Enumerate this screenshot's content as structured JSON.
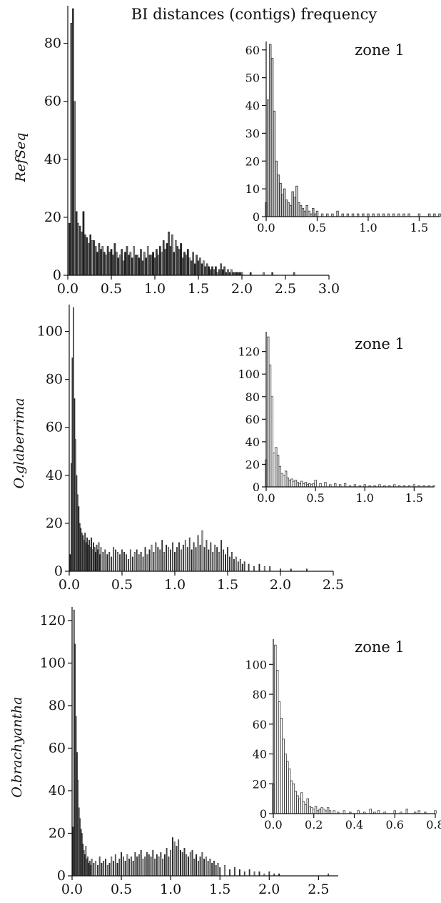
{
  "figure_title": "BI distances (contigs) frequency",
  "chart_data": [
    {
      "type": "bar",
      "panel": "main",
      "ylabel": "RefSeq",
      "xlim": [
        0,
        3.0
      ],
      "ylim": [
        0,
        92
      ],
      "x_ticks": [
        "0.0",
        "0.5",
        "1.0",
        "1.5",
        "2.0",
        "2.5",
        "3.0"
      ],
      "y_ticks": [
        "0",
        "20",
        "40",
        "60",
        "80"
      ],
      "x": [
        0.02,
        0.04,
        0.06,
        0.08,
        0.1,
        0.12,
        0.14,
        0.16,
        0.18,
        0.2,
        0.22,
        0.24,
        0.26,
        0.28,
        0.3,
        0.32,
        0.34,
        0.36,
        0.38,
        0.4,
        0.42,
        0.44,
        0.46,
        0.48,
        0.5,
        0.52,
        0.54,
        0.56,
        0.58,
        0.6,
        0.62,
        0.64,
        0.66,
        0.68,
        0.7,
        0.72,
        0.74,
        0.76,
        0.78,
        0.8,
        0.82,
        0.84,
        0.86,
        0.88,
        0.9,
        0.92,
        0.94,
        0.96,
        0.98,
        1.0,
        1.02,
        1.04,
        1.06,
        1.08,
        1.1,
        1.12,
        1.14,
        1.16,
        1.18,
        1.2,
        1.22,
        1.24,
        1.26,
        1.28,
        1.3,
        1.32,
        1.34,
        1.36,
        1.38,
        1.4,
        1.42,
        1.44,
        1.46,
        1.48,
        1.5,
        1.52,
        1.54,
        1.56,
        1.58,
        1.6,
        1.62,
        1.64,
        1.66,
        1.68,
        1.7,
        1.72,
        1.74,
        1.76,
        1.78,
        1.8,
        1.82,
        1.84,
        1.86,
        1.88,
        1.9,
        1.92,
        1.94,
        1.96,
        1.98,
        2.0,
        2.1,
        2.25,
        2.35,
        2.6
      ],
      "values": [
        18,
        87,
        92,
        60,
        22,
        18,
        17,
        15,
        22,
        14,
        13,
        11,
        14,
        12,
        12,
        10,
        8,
        11,
        9,
        10,
        8,
        7,
        10,
        8,
        9,
        7,
        11,
        8,
        6,
        7,
        9,
        5,
        8,
        10,
        7,
        8,
        6,
        10,
        7,
        7,
        6,
        9,
        5,
        8,
        6,
        10,
        7,
        7,
        8,
        6,
        9,
        7,
        10,
        8,
        12,
        9,
        11,
        15,
        10,
        14,
        8,
        12,
        10,
        9,
        11,
        6,
        8,
        7,
        9,
        6,
        5,
        8,
        4,
        7,
        5,
        6,
        4,
        5,
        3,
        4,
        3,
        2,
        3,
        2,
        3,
        1,
        2,
        4,
        2,
        3,
        1,
        2,
        1,
        2,
        1,
        1,
        1,
        1,
        1,
        1,
        1,
        1,
        1,
        1
      ],
      "style": "dark"
    },
    {
      "type": "bar",
      "panel": "inset",
      "label": "zone 1",
      "xlim": [
        0,
        1.7
      ],
      "ylim": [
        0,
        62
      ],
      "x_ticks": [
        "0.0",
        "0.5",
        "1.0",
        "1.5"
      ],
      "y_ticks": [
        "0",
        "10",
        "20",
        "30",
        "40",
        "50",
        "60"
      ],
      "x": [
        0.0,
        0.02,
        0.04,
        0.06,
        0.08,
        0.1,
        0.12,
        0.14,
        0.16,
        0.18,
        0.2,
        0.22,
        0.24,
        0.26,
        0.28,
        0.3,
        0.32,
        0.34,
        0.36,
        0.38,
        0.4,
        0.42,
        0.44,
        0.46,
        0.48,
        0.5,
        0.55,
        0.6,
        0.65,
        0.7,
        0.75,
        0.8,
        0.85,
        0.9,
        0.95,
        1.0,
        1.05,
        1.1,
        1.15,
        1.2,
        1.25,
        1.3,
        1.35,
        1.4,
        1.5,
        1.6,
        1.65,
        1.7
      ],
      "values": [
        5,
        42,
        62,
        57,
        38,
        20,
        15,
        12,
        8,
        10,
        6,
        5,
        4,
        9,
        7,
        11,
        5,
        4,
        3,
        2,
        4,
        2,
        1,
        3,
        1,
        2,
        1,
        1,
        1,
        2,
        1,
        1,
        1,
        1,
        1,
        1,
        1,
        1,
        1,
        1,
        1,
        1,
        1,
        1,
        1,
        1,
        1,
        1
      ],
      "style": "light-gray"
    },
    {
      "type": "bar",
      "panel": "main",
      "ylabel": "O.glaberrima",
      "xlim": [
        0,
        2.5
      ],
      "ylim": [
        0,
        110
      ],
      "x_ticks": [
        "0.0",
        "0.5",
        "1.0",
        "1.5",
        "2.0",
        "2.5"
      ],
      "y_ticks": [
        "0",
        "20",
        "40",
        "60",
        "80",
        "100"
      ],
      "x": [
        0.01,
        0.02,
        0.03,
        0.04,
        0.05,
        0.06,
        0.07,
        0.08,
        0.09,
        0.1,
        0.11,
        0.12,
        0.13,
        0.14,
        0.15,
        0.16,
        0.17,
        0.18,
        0.19,
        0.2,
        0.21,
        0.22,
        0.23,
        0.24,
        0.25,
        0.26,
        0.27,
        0.28,
        0.29,
        0.3,
        0.32,
        0.34,
        0.36,
        0.38,
        0.4,
        0.42,
        0.44,
        0.46,
        0.48,
        0.5,
        0.52,
        0.54,
        0.56,
        0.58,
        0.6,
        0.62,
        0.64,
        0.66,
        0.68,
        0.7,
        0.72,
        0.74,
        0.76,
        0.78,
        0.8,
        0.82,
        0.84,
        0.86,
        0.88,
        0.9,
        0.92,
        0.94,
        0.96,
        0.98,
        1.0,
        1.02,
        1.04,
        1.06,
        1.08,
        1.1,
        1.12,
        1.14,
        1.16,
        1.18,
        1.2,
        1.22,
        1.24,
        1.26,
        1.28,
        1.3,
        1.32,
        1.34,
        1.36,
        1.38,
        1.4,
        1.42,
        1.44,
        1.46,
        1.48,
        1.5,
        1.52,
        1.54,
        1.56,
        1.58,
        1.6,
        1.62,
        1.64,
        1.66,
        1.7,
        1.75,
        1.8,
        1.85,
        1.9,
        2.0,
        2.1,
        2.25
      ],
      "values": [
        7,
        45,
        89,
        110,
        72,
        55,
        40,
        32,
        27,
        20,
        18,
        16,
        15,
        13,
        16,
        12,
        14,
        11,
        13,
        10,
        14,
        9,
        12,
        10,
        8,
        11,
        9,
        12,
        7,
        10,
        8,
        9,
        7,
        8,
        6,
        10,
        9,
        8,
        7,
        9,
        8,
        7,
        5,
        9,
        6,
        8,
        9,
        7,
        8,
        6,
        10,
        7,
        9,
        11,
        8,
        12,
        10,
        9,
        13,
        8,
        11,
        10,
        9,
        12,
        8,
        10,
        12,
        9,
        11,
        13,
        10,
        14,
        9,
        12,
        10,
        15,
        11,
        17,
        10,
        13,
        9,
        12,
        8,
        11,
        10,
        8,
        13,
        9,
        7,
        10,
        6,
        8,
        5,
        6,
        4,
        5,
        3,
        4,
        3,
        2,
        3,
        2,
        2,
        1,
        1,
        1
      ],
      "style": "dark"
    },
    {
      "type": "bar",
      "panel": "inset",
      "label": "zone 1",
      "xlim": [
        0,
        1.7
      ],
      "ylim": [
        0,
        135
      ],
      "x_ticks": [
        "0.0",
        "0.5",
        "1.0",
        "1.5"
      ],
      "y_ticks": [
        "0",
        "20",
        "40",
        "60",
        "80",
        "100",
        "120"
      ],
      "x": [
        0.0,
        0.02,
        0.04,
        0.06,
        0.08,
        0.1,
        0.12,
        0.14,
        0.16,
        0.18,
        0.2,
        0.22,
        0.24,
        0.26,
        0.28,
        0.3,
        0.32,
        0.34,
        0.36,
        0.38,
        0.4,
        0.42,
        0.44,
        0.46,
        0.48,
        0.5,
        0.55,
        0.6,
        0.65,
        0.7,
        0.75,
        0.8,
        0.85,
        0.9,
        0.95,
        1.0,
        1.05,
        1.1,
        1.15,
        1.2,
        1.25,
        1.3,
        1.35,
        1.4,
        1.45,
        1.5,
        1.55,
        1.6,
        1.65,
        1.7
      ],
      "values": [
        24,
        133,
        108,
        80,
        30,
        35,
        28,
        18,
        12,
        10,
        14,
        8,
        6,
        7,
        5,
        6,
        4,
        3,
        5,
        3,
        4,
        2,
        3,
        2,
        3,
        6,
        3,
        4,
        2,
        3,
        2,
        3,
        1,
        2,
        1,
        2,
        1,
        1,
        2,
        1,
        1,
        2,
        1,
        1,
        1,
        2,
        1,
        1,
        1,
        1
      ],
      "style": "white"
    },
    {
      "type": "bar",
      "panel": "main",
      "ylabel": "O.brachyantha",
      "xlim": [
        0,
        2.7
      ],
      "ylim": [
        0,
        125
      ],
      "x_ticks": [
        "0.0",
        "0.5",
        "1.0",
        "1.5",
        "2.0",
        "2.5"
      ],
      "y_ticks": [
        "0",
        "20",
        "40",
        "60",
        "80",
        "100",
        "120"
      ],
      "x": [
        0.01,
        0.02,
        0.03,
        0.04,
        0.05,
        0.06,
        0.07,
        0.08,
        0.09,
        0.1,
        0.11,
        0.12,
        0.13,
        0.14,
        0.15,
        0.16,
        0.17,
        0.18,
        0.19,
        0.2,
        0.22,
        0.24,
        0.26,
        0.28,
        0.3,
        0.32,
        0.34,
        0.36,
        0.38,
        0.4,
        0.42,
        0.44,
        0.46,
        0.48,
        0.5,
        0.52,
        0.54,
        0.56,
        0.58,
        0.6,
        0.62,
        0.64,
        0.66,
        0.68,
        0.7,
        0.72,
        0.74,
        0.76,
        0.78,
        0.8,
        0.82,
        0.84,
        0.86,
        0.88,
        0.9,
        0.92,
        0.94,
        0.96,
        0.98,
        1.0,
        1.02,
        1.04,
        1.06,
        1.08,
        1.1,
        1.12,
        1.14,
        1.16,
        1.18,
        1.2,
        1.22,
        1.24,
        1.26,
        1.28,
        1.3,
        1.32,
        1.34,
        1.36,
        1.38,
        1.4,
        1.42,
        1.44,
        1.46,
        1.48,
        1.5,
        1.55,
        1.6,
        1.65,
        1.7,
        1.75,
        1.8,
        1.85,
        1.9,
        1.95,
        2.0,
        2.05,
        2.1,
        2.6
      ],
      "values": [
        23,
        125,
        109,
        75,
        58,
        45,
        32,
        27,
        22,
        20,
        15,
        12,
        10,
        14,
        8,
        9,
        6,
        7,
        5,
        8,
        6,
        7,
        5,
        9,
        6,
        7,
        8,
        5,
        6,
        9,
        7,
        10,
        6,
        8,
        11,
        9,
        7,
        10,
        8,
        9,
        7,
        11,
        9,
        10,
        12,
        8,
        9,
        11,
        10,
        9,
        12,
        8,
        10,
        9,
        11,
        8,
        10,
        13,
        9,
        12,
        18,
        16,
        14,
        17,
        12,
        11,
        13,
        10,
        9,
        11,
        12,
        8,
        10,
        7,
        9,
        11,
        8,
        9,
        7,
        8,
        6,
        7,
        5,
        6,
        4,
        5,
        3,
        4,
        3,
        2,
        3,
        2,
        2,
        1,
        2,
        1,
        1,
        1
      ],
      "style": "dark"
    },
    {
      "type": "bar",
      "panel": "inset",
      "label": "zone 1",
      "xlim": [
        0,
        0.8
      ],
      "ylim": [
        0,
        115
      ],
      "x_ticks": [
        "0.0",
        "0.2",
        "0.4",
        "0.6",
        "0.8"
      ],
      "y_ticks": [
        "0",
        "20",
        "40",
        "60",
        "80",
        "100"
      ],
      "x": [
        0.0,
        0.01,
        0.02,
        0.03,
        0.04,
        0.05,
        0.06,
        0.07,
        0.08,
        0.09,
        0.1,
        0.11,
        0.12,
        0.13,
        0.14,
        0.15,
        0.16,
        0.17,
        0.18,
        0.19,
        0.2,
        0.21,
        0.22,
        0.23,
        0.24,
        0.25,
        0.26,
        0.27,
        0.28,
        0.3,
        0.32,
        0.35,
        0.38,
        0.42,
        0.45,
        0.48,
        0.5,
        0.52,
        0.55,
        0.6,
        0.63,
        0.66,
        0.7,
        0.72,
        0.75,
        0.8
      ],
      "values": [
        20,
        113,
        96,
        75,
        64,
        50,
        40,
        35,
        30,
        22,
        20,
        15,
        12,
        10,
        14,
        8,
        6,
        10,
        5,
        4,
        3,
        5,
        2,
        3,
        4,
        3,
        2,
        4,
        2,
        2,
        1,
        2,
        1,
        2,
        1,
        3,
        1,
        2,
        1,
        2,
        1,
        3,
        1,
        2,
        1,
        2
      ],
      "style": "white"
    }
  ]
}
